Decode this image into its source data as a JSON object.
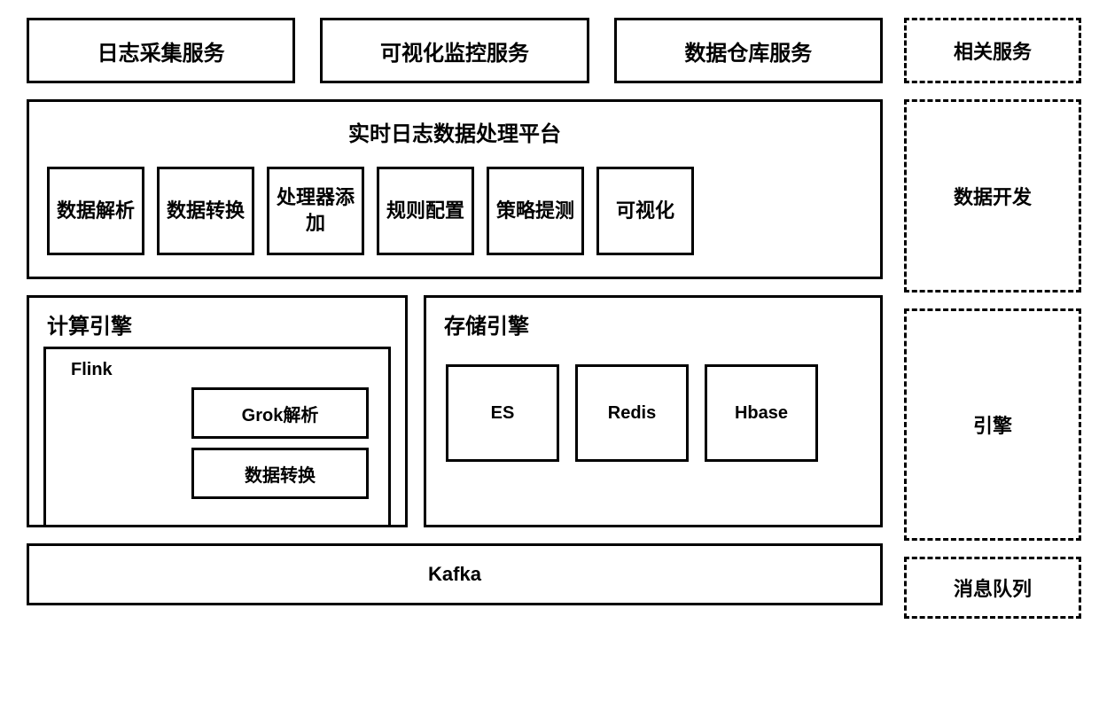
{
  "diagram": {
    "type": "architecture-block-diagram",
    "background_color": "#ffffff",
    "box_border_color": "#000000",
    "box_border_width": 3,
    "dashed_border_style": "dashed",
    "font_family": "Microsoft YaHei",
    "font_weight": "bold"
  },
  "topRow": {
    "items": [
      {
        "label": "日志采集服务"
      },
      {
        "label": "可视化监控服务"
      },
      {
        "label": "数据仓库服务"
      }
    ],
    "font_size": 24
  },
  "platform": {
    "title": "实时日志数据处理平台",
    "title_font_size": 24,
    "modules": [
      {
        "label": "数据解析"
      },
      {
        "label": "数据转换"
      },
      {
        "label": "处理器添加"
      },
      {
        "label": "规则配置"
      },
      {
        "label": "策略提测"
      },
      {
        "label": "可视化"
      }
    ],
    "module_font_size": 22
  },
  "computeEngine": {
    "title": "计算引擎",
    "title_font_size": 24,
    "flink": {
      "title": "Flink",
      "title_font_size": 20,
      "items": [
        {
          "label": "Grok解析"
        },
        {
          "label": "数据转换"
        }
      ],
      "item_font_size": 20
    }
  },
  "storageEngine": {
    "title": "存储引擎",
    "title_font_size": 24,
    "items": [
      {
        "label": "ES"
      },
      {
        "label": "Redis"
      },
      {
        "label": "Hbase"
      }
    ],
    "item_font_size": 20
  },
  "kafka": {
    "label": "Kafka",
    "font_size": 22
  },
  "rightCol": {
    "services": {
      "label": "相关服务"
    },
    "dev": {
      "label": "数据开发"
    },
    "engine": {
      "label": "引擎"
    },
    "mq": {
      "label": "消息队列"
    },
    "font_size": 22
  }
}
